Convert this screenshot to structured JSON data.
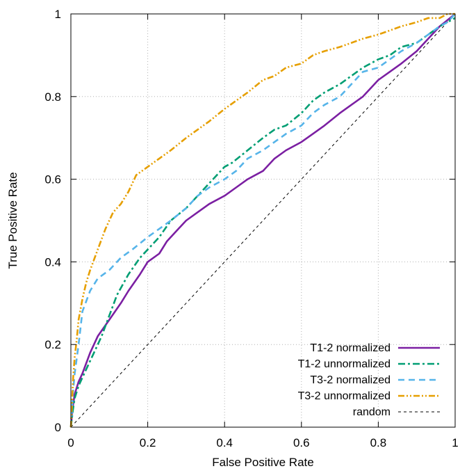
{
  "chart_data": {
    "type": "line",
    "title": "",
    "xlabel": "False Positive Rate",
    "ylabel": "True Positive Rate",
    "xlim": [
      0,
      1
    ],
    "ylim": [
      0,
      1
    ],
    "x_ticks": [
      "0",
      "0.2",
      "0.4",
      "0.6",
      "0.8",
      "1"
    ],
    "y_ticks": [
      "0",
      "0.2",
      "0.4",
      "0.6",
      "0.8",
      "1"
    ],
    "grid": true,
    "legend_position": "bottom-right",
    "series": [
      {
        "name": "T1-2 normalized",
        "color": "#7b1fa2",
        "dash": "solid",
        "x": [
          0,
          0.005,
          0.01,
          0.02,
          0.03,
          0.05,
          0.07,
          0.1,
          0.13,
          0.15,
          0.18,
          0.2,
          0.23,
          0.25,
          0.28,
          0.3,
          0.33,
          0.36,
          0.4,
          0.43,
          0.46,
          0.5,
          0.53,
          0.56,
          0.6,
          0.63,
          0.66,
          0.7,
          0.73,
          0.76,
          0.8,
          0.83,
          0.86,
          0.9,
          0.93,
          0.96,
          1.0
        ],
        "y": [
          0,
          0.05,
          0.08,
          0.11,
          0.13,
          0.18,
          0.22,
          0.26,
          0.3,
          0.33,
          0.37,
          0.4,
          0.42,
          0.45,
          0.48,
          0.5,
          0.52,
          0.54,
          0.56,
          0.58,
          0.6,
          0.62,
          0.65,
          0.67,
          0.69,
          0.71,
          0.73,
          0.76,
          0.78,
          0.8,
          0.84,
          0.86,
          0.88,
          0.91,
          0.94,
          0.97,
          1.0
        ]
      },
      {
        "name": "T1-2 unnormalized",
        "color": "#009e73",
        "dash": "dashdot",
        "x": [
          0,
          0.005,
          0.01,
          0.02,
          0.04,
          0.06,
          0.08,
          0.1,
          0.12,
          0.15,
          0.18,
          0.2,
          0.23,
          0.26,
          0.3,
          0.33,
          0.36,
          0.4,
          0.42,
          0.46,
          0.5,
          0.53,
          0.56,
          0.6,
          0.63,
          0.66,
          0.7,
          0.73,
          0.76,
          0.8,
          0.83,
          0.86,
          0.9,
          0.93,
          0.96,
          0.98,
          1.0
        ],
        "y": [
          0,
          0.04,
          0.07,
          0.1,
          0.14,
          0.18,
          0.22,
          0.27,
          0.32,
          0.37,
          0.41,
          0.43,
          0.46,
          0.5,
          0.53,
          0.56,
          0.59,
          0.63,
          0.64,
          0.67,
          0.7,
          0.72,
          0.73,
          0.76,
          0.79,
          0.81,
          0.83,
          0.85,
          0.87,
          0.89,
          0.9,
          0.92,
          0.93,
          0.95,
          0.97,
          0.98,
          0.99
        ]
      },
      {
        "name": "T3-2 normalized",
        "color": "#56b4e9",
        "dash": "dashed",
        "x": [
          0,
          0.005,
          0.01,
          0.02,
          0.03,
          0.05,
          0.07,
          0.1,
          0.13,
          0.16,
          0.2,
          0.23,
          0.26,
          0.3,
          0.33,
          0.36,
          0.4,
          0.43,
          0.46,
          0.5,
          0.53,
          0.56,
          0.6,
          0.63,
          0.66,
          0.7,
          0.73,
          0.76,
          0.8,
          0.83,
          0.86,
          0.9,
          0.93,
          0.96,
          0.98,
          1.0
        ],
        "y": [
          0,
          0.08,
          0.13,
          0.2,
          0.28,
          0.33,
          0.36,
          0.38,
          0.41,
          0.43,
          0.46,
          0.48,
          0.5,
          0.53,
          0.56,
          0.58,
          0.6,
          0.62,
          0.65,
          0.67,
          0.69,
          0.71,
          0.73,
          0.76,
          0.78,
          0.8,
          0.83,
          0.86,
          0.87,
          0.89,
          0.91,
          0.93,
          0.95,
          0.97,
          0.98,
          1.0
        ]
      },
      {
        "name": "T3-2 unnormalized",
        "color": "#e69f00",
        "dash": "dashdotdot",
        "x": [
          0,
          0.003,
          0.006,
          0.01,
          0.015,
          0.02,
          0.03,
          0.04,
          0.05,
          0.07,
          0.09,
          0.11,
          0.13,
          0.15,
          0.17,
          0.2,
          0.23,
          0.26,
          0.3,
          0.33,
          0.36,
          0.4,
          0.43,
          0.46,
          0.5,
          0.53,
          0.56,
          0.6,
          0.63,
          0.66,
          0.7,
          0.73,
          0.76,
          0.8,
          0.83,
          0.86,
          0.9,
          0.93,
          0.96,
          0.98,
          1.0
        ],
        "y": [
          0,
          0.06,
          0.12,
          0.17,
          0.21,
          0.26,
          0.31,
          0.35,
          0.38,
          0.43,
          0.48,
          0.52,
          0.54,
          0.57,
          0.61,
          0.63,
          0.65,
          0.67,
          0.7,
          0.72,
          0.74,
          0.77,
          0.79,
          0.81,
          0.84,
          0.85,
          0.87,
          0.88,
          0.9,
          0.91,
          0.92,
          0.93,
          0.94,
          0.95,
          0.96,
          0.97,
          0.98,
          0.99,
          0.99,
          1.0,
          1.0
        ]
      },
      {
        "name": "random",
        "color": "#000000",
        "dash": "fine",
        "x": [
          0,
          1
        ],
        "y": [
          0,
          1
        ]
      }
    ]
  }
}
